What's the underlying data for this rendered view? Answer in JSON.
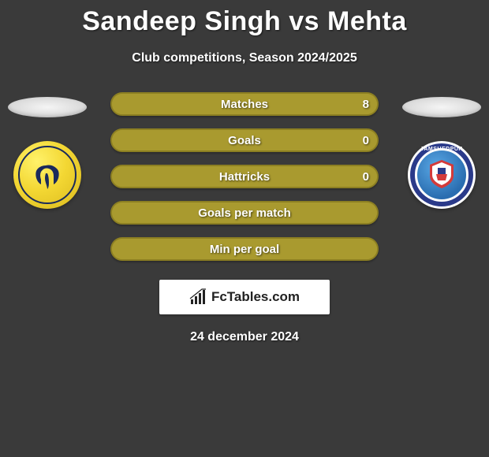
{
  "title": "Sandeep Singh vs Mehta",
  "subtitle": "Club competitions, Season 2024/2025",
  "date": "24 december 2024",
  "branding": {
    "text": "FcTables.com"
  },
  "colors": {
    "player1_fill": "#a99a2f",
    "player1_border": "#8c7f22",
    "player2_fill": "#a99a2f",
    "player2_border": "#8c7f22",
    "neutral_bg": "#a99a2f"
  },
  "clubs": {
    "left": {
      "name": "Kerala Blasters"
    },
    "right": {
      "name": "Jamshedpur FC"
    }
  },
  "stats": [
    {
      "label": "Matches",
      "p1": "",
      "p2": "8",
      "p1_pct": 0,
      "p2_pct": 100
    },
    {
      "label": "Goals",
      "p1": "",
      "p2": "0",
      "p1_pct": 0,
      "p2_pct": 100
    },
    {
      "label": "Hattricks",
      "p1": "",
      "p2": "0",
      "p1_pct": 0,
      "p2_pct": 100
    },
    {
      "label": "Goals per match",
      "p1": "",
      "p2": "",
      "p1_pct": 50,
      "p2_pct": 50
    },
    {
      "label": "Min per goal",
      "p1": "",
      "p2": "",
      "p1_pct": 50,
      "p2_pct": 50
    }
  ]
}
